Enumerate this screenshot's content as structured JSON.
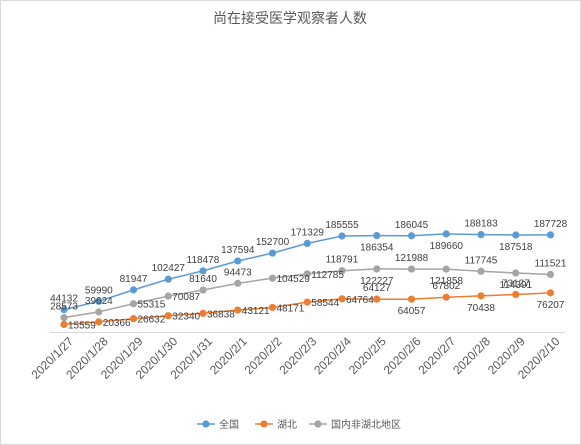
{
  "chart_data": {
    "type": "line",
    "title": "尚在接受医学观察者人数",
    "categories": [
      "2020/1/27",
      "2020/1/28",
      "2020/1/29",
      "2020/1/30",
      "2020/1/31",
      "2020/2/1",
      "2020/2/2",
      "2020/2/3",
      "2020/2/4",
      "2020/2/5",
      "2020/2/6",
      "2020/2/7",
      "2020/2/8",
      "2020/2/9",
      "2020/2/10"
    ],
    "ylim": [
      0,
      200000
    ],
    "grid": false,
    "legend_position": "bottom",
    "series": [
      {
        "name": "全国",
        "color": "#5b9bd5",
        "values": [
          44132,
          59990,
          81947,
          102427,
          118478,
          137594,
          152700,
          171329,
          185555,
          186354,
          186045,
          189660,
          188183,
          187518,
          187728
        ],
        "label_positions": [
          "above",
          "above",
          "above",
          "above",
          "above",
          "above",
          "above",
          "above",
          "above",
          "below",
          "above",
          "below",
          "above",
          "below",
          "above"
        ]
      },
      {
        "name": "湖北",
        "color": "#ed7d31",
        "values": [
          15559,
          20366,
          26632,
          32340,
          36838,
          43121,
          48171,
          58544,
          64764,
          64127,
          64057,
          67802,
          70438,
          73127,
          76207
        ],
        "label_positions": [
          "right",
          "right",
          "right",
          "right",
          "right",
          "right",
          "right",
          "right",
          "right",
          "above",
          "below",
          "above",
          "below",
          "above",
          "below"
        ],
        "label_texts": [
          "15559",
          "20366",
          "26632",
          "32340",
          "36838",
          "43121",
          "48171",
          "58544",
          "64764",
          "64127",
          "64057",
          "67802",
          "70438",
          "73127",
          "76207"
        ]
      },
      {
        "name": "国内非湖北地区",
        "color": "#a5a5a5",
        "values": [
          28573,
          39624,
          55315,
          70087,
          81640,
          94473,
          104529,
          112785,
          118791,
          122227,
          121988,
          121858,
          117745,
          114391,
          111521
        ],
        "label_positions": [
          "above",
          "above",
          "right",
          "right",
          "above",
          "above",
          "right",
          "right",
          "above",
          "below",
          "above",
          "below",
          "above",
          "below",
          "above"
        ]
      }
    ]
  }
}
